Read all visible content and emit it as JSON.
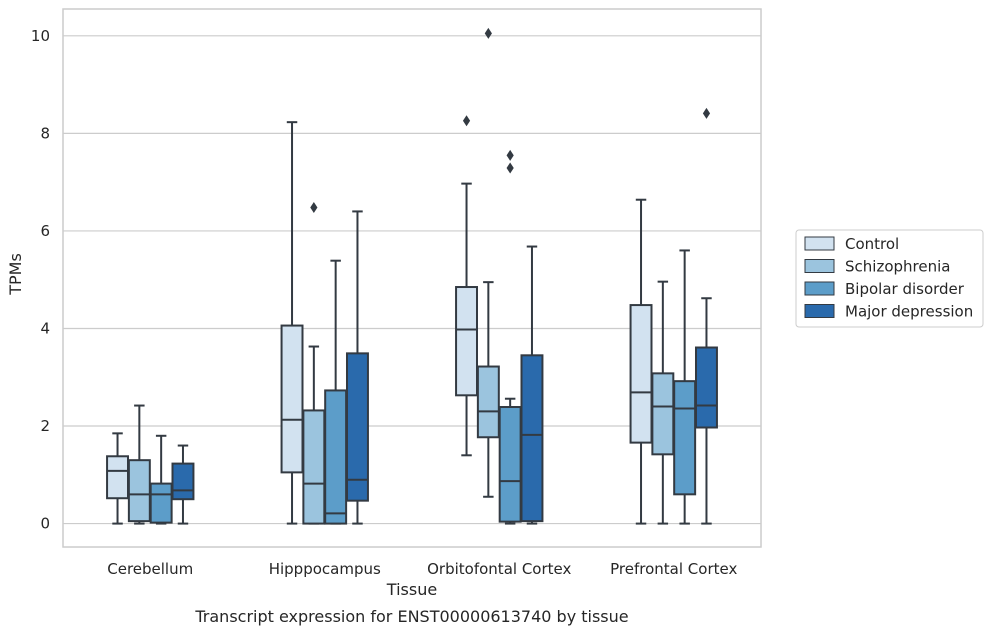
{
  "caption": "Transcript expression for ENST00000613740 by tissue",
  "chart_data": {
    "type": "boxplot",
    "title": "",
    "xlabel": "Tissue",
    "ylabel": "TPMs",
    "categories": [
      "Cerebellum",
      "Hipppocampus",
      "Orbitofontal Cortex",
      "Prefrontal Cortex"
    ],
    "ylim": [
      -0.48,
      10.55
    ],
    "yticks": [
      0,
      2,
      4,
      6,
      8,
      10
    ],
    "grid": "y",
    "legend_position": "right",
    "series": [
      {
        "name": "Control",
        "color": "#d2e2f0",
        "boxes": [
          {
            "whislo": 0.0,
            "q1": 0.52,
            "med": 1.08,
            "q3": 1.38,
            "whishi": 1.85,
            "fliers": []
          },
          {
            "whislo": 0.0,
            "q1": 1.05,
            "med": 2.13,
            "q3": 4.06,
            "whishi": 8.23,
            "fliers": []
          },
          {
            "whislo": 1.4,
            "q1": 2.63,
            "med": 3.98,
            "q3": 4.85,
            "whishi": 6.97,
            "fliers": [
              8.26
            ]
          },
          {
            "whislo": 0.0,
            "q1": 1.66,
            "med": 2.69,
            "q3": 4.48,
            "whishi": 6.64,
            "fliers": []
          }
        ]
      },
      {
        "name": "Schizophrenia",
        "color": "#9bc4de",
        "boxes": [
          {
            "whislo": 0.0,
            "q1": 0.05,
            "med": 0.6,
            "q3": 1.3,
            "whishi": 2.42,
            "fliers": []
          },
          {
            "whislo": 0.0,
            "q1": 0.0,
            "med": 0.82,
            "q3": 2.32,
            "whishi": 3.63,
            "fliers": [
              6.48
            ]
          },
          {
            "whislo": 0.55,
            "q1": 1.77,
            "med": 2.3,
            "q3": 3.22,
            "whishi": 4.95,
            "fliers": [
              10.05
            ]
          },
          {
            "whislo": 0.0,
            "q1": 1.42,
            "med": 2.4,
            "q3": 3.08,
            "whishi": 4.96,
            "fliers": []
          }
        ]
      },
      {
        "name": "Bipolar disorder",
        "color": "#5c9dc9",
        "boxes": [
          {
            "whislo": 0.0,
            "q1": 0.02,
            "med": 0.6,
            "q3": 0.82,
            "whishi": 1.8,
            "fliers": []
          },
          {
            "whislo": 0.0,
            "q1": 0.0,
            "med": 0.21,
            "q3": 2.73,
            "whishi": 5.39,
            "fliers": []
          },
          {
            "whislo": 0.0,
            "q1": 0.04,
            "med": 0.87,
            "q3": 2.39,
            "whishi": 2.56,
            "fliers": [
              7.29,
              7.55
            ]
          },
          {
            "whislo": 0.0,
            "q1": 0.6,
            "med": 2.36,
            "q3": 2.92,
            "whishi": 5.6,
            "fliers": []
          }
        ]
      },
      {
        "name": "Major depression",
        "color": "#2a6aac",
        "boxes": [
          {
            "whislo": 0.0,
            "q1": 0.5,
            "med": 0.68,
            "q3": 1.23,
            "whishi": 1.6,
            "fliers": []
          },
          {
            "whislo": 0.0,
            "q1": 0.47,
            "med": 0.9,
            "q3": 3.49,
            "whishi": 6.4,
            "fliers": []
          },
          {
            "whislo": 0.0,
            "q1": 0.05,
            "med": 1.82,
            "q3": 3.45,
            "whishi": 5.68,
            "fliers": []
          },
          {
            "whislo": 0.0,
            "q1": 1.97,
            "med": 2.42,
            "q3": 3.61,
            "whishi": 4.62,
            "fliers": [
              8.41
            ]
          }
        ]
      }
    ]
  }
}
